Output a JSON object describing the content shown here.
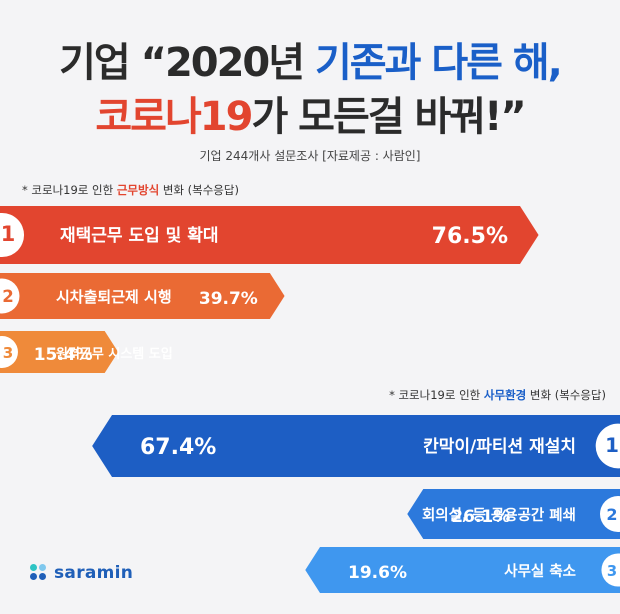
{
  "title": {
    "line1_a": "기업 “2020년 ",
    "line1_b": "기존과 다른 해,",
    "line2_a": "코로나19",
    "line2_b": "가 모든걸 바꿔!”"
  },
  "subtitle": "기업 244개사 설문조사 [자료제공 : 사람인]",
  "note1": {
    "prefix": "* 코로나19로 인한 ",
    "highlight": "근무방식",
    "suffix": " 변화 (복수응답)"
  },
  "note2": {
    "prefix": "* 코로나19로 인한 ",
    "highlight": "사무환경",
    "suffix": " 변화 (복수응답)"
  },
  "brand": {
    "name": "saramin"
  },
  "colors": {
    "red1": "#e2452f",
    "red2": "#ea6a34",
    "red3": "#ef8a3a",
    "blue1": "#1d5ec4",
    "blue2": "#2c79dc",
    "blue3": "#3f97ef",
    "dot1": "#2ec4c4",
    "dot2": "#1f5fb8",
    "dot3": "#7fc8ee",
    "dot4": "#1f5fb8"
  },
  "chart_data": [
    {
      "type": "bar",
      "title": "근무방식 변화",
      "unit": "%",
      "categories": [
        "재택근무 도입 및 확대",
        "시차출퇴근제 시행",
        "원격근무 시스템 도입"
      ],
      "ranks": [
        "1",
        "2",
        "3"
      ],
      "values": [
        76.5,
        39.7,
        15.4
      ],
      "value_labels": [
        "76.5%",
        "39.7%",
        "15.4%"
      ]
    },
    {
      "type": "bar",
      "title": "사무환경 변화",
      "unit": "%",
      "categories": [
        "칸막이/파티션 재설치",
        "회의실, 등 공용공간 폐쇄",
        "사무실 축소"
      ],
      "ranks": [
        "1",
        "2",
        "3"
      ],
      "values": [
        67.4,
        26.1,
        19.6
      ],
      "value_labels": [
        "67.4%",
        "26.1%",
        "19.6%"
      ]
    }
  ]
}
